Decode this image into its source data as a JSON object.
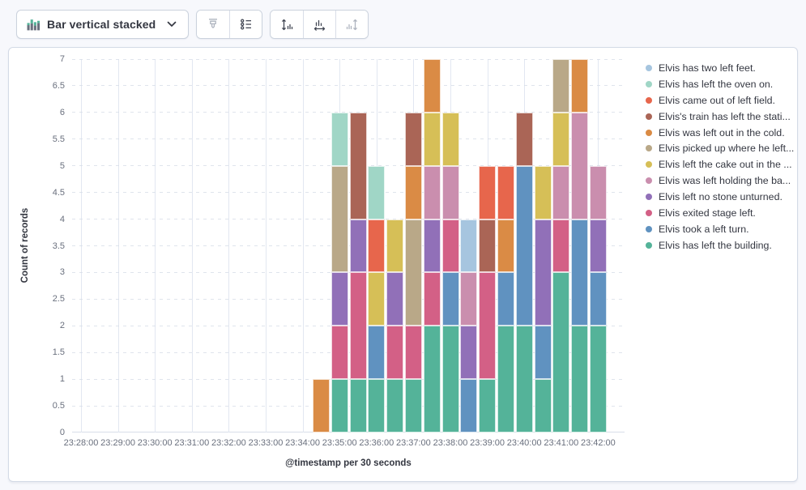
{
  "toolbar": {
    "chart_type_label": "Bar vertical stacked",
    "chart_type_icon": "bar-vertical-stacked-icon",
    "icons": [
      "brush-icon",
      "legend-list-icon",
      "axis-left-icon",
      "axis-bottom-icon",
      "axis-right-icon"
    ]
  },
  "chart_data": {
    "type": "bar",
    "stacked": true,
    "xlabel": "@timestamp per 30 seconds",
    "ylabel": "Count of records",
    "ylim": [
      0,
      7
    ],
    "grid": "both",
    "legend_position": "right",
    "y_ticks": [
      "0",
      "0.5",
      "1",
      "1.5",
      "2",
      "2.5",
      "3",
      "3.5",
      "4",
      "4.5",
      "5",
      "5.5",
      "6",
      "6.5",
      "7"
    ],
    "x_ticks": [
      "23:28:00",
      "23:29:00",
      "23:30:00",
      "23:31:00",
      "23:32:00",
      "23:33:00",
      "23:34:00",
      "23:35:00",
      "23:36:00",
      "23:37:00",
      "23:38:00",
      "23:39:00",
      "23:40:00",
      "23:41:00",
      "23:42:00"
    ],
    "categories": [
      "23:34:30",
      "23:35:00",
      "23:35:30",
      "23:36:00",
      "23:36:30",
      "23:37:00",
      "23:37:30",
      "23:38:00",
      "23:38:30",
      "23:39:00",
      "23:39:30",
      "23:40:00",
      "23:40:30",
      "23:41:00",
      "23:41:30",
      "23:42:00"
    ],
    "series": [
      {
        "name": "Elvis has left the building.",
        "color": "#54B399",
        "values": [
          0,
          1,
          1,
          1,
          1,
          1,
          2,
          2,
          0,
          1,
          2,
          2,
          1,
          3,
          2,
          2
        ]
      },
      {
        "name": "Elvis took a left turn.",
        "color": "#6092C0",
        "values": [
          0,
          0,
          0,
          1,
          0,
          0,
          0,
          1,
          1,
          0,
          1,
          3,
          1,
          0,
          2,
          1
        ]
      },
      {
        "name": "Elvis exited stage left.",
        "color": "#D36086",
        "values": [
          0,
          1,
          2,
          0,
          1,
          1,
          1,
          1,
          0,
          2,
          0,
          0,
          0,
          1,
          0,
          0
        ]
      },
      {
        "name": "Elvis left no stone unturned.",
        "color": "#9170B8",
        "values": [
          0,
          1,
          1,
          0,
          1,
          0,
          1,
          0,
          1,
          0,
          0,
          0,
          2,
          0,
          0,
          1
        ]
      },
      {
        "name": "Elvis was left holding the ba...",
        "color": "#CA8EAE",
        "values": [
          0,
          0,
          0,
          0,
          0,
          0,
          1,
          1,
          1,
          0,
          0,
          0,
          0,
          1,
          2,
          1
        ]
      },
      {
        "name": "Elvis left the cake out in the ...",
        "color": "#D6BF57",
        "values": [
          0,
          0,
          0,
          1,
          1,
          0,
          1,
          1,
          0,
          0,
          0,
          0,
          1,
          1,
          0,
          0
        ]
      },
      {
        "name": "Elvis picked up where he left...",
        "color": "#B9A888",
        "values": [
          0,
          2,
          0,
          0,
          0,
          2,
          0,
          0,
          0,
          0,
          0,
          0,
          0,
          1,
          0,
          0
        ]
      },
      {
        "name": "Elvis was left out in the cold.",
        "color": "#DA8B45",
        "values": [
          1,
          0,
          0,
          0,
          0,
          1,
          1,
          0,
          0,
          0,
          1,
          0,
          0,
          0,
          1,
          0
        ]
      },
      {
        "name": "Elvis's train has left the stati...",
        "color": "#AA6556",
        "values": [
          0,
          0,
          2,
          0,
          0,
          1,
          0,
          0,
          0,
          1,
          0,
          1,
          0,
          0,
          0,
          0
        ]
      },
      {
        "name": "Elvis came out of left field.",
        "color": "#E7664C",
        "values": [
          0,
          0,
          0,
          1,
          0,
          0,
          0,
          0,
          0,
          1,
          1,
          0,
          0,
          0,
          0,
          0
        ]
      },
      {
        "name": "Elvis has left the oven on.",
        "color": "#A0D6C6",
        "values": [
          0,
          1,
          0,
          1,
          0,
          0,
          0,
          0,
          0,
          0,
          0,
          0,
          0,
          0,
          0,
          0
        ]
      },
      {
        "name": "Elvis has two left feet.",
        "color": "#A6C5DF",
        "values": [
          0,
          0,
          0,
          0,
          0,
          0,
          0,
          0,
          1,
          0,
          0,
          0,
          0,
          0,
          0,
          0
        ]
      }
    ]
  }
}
